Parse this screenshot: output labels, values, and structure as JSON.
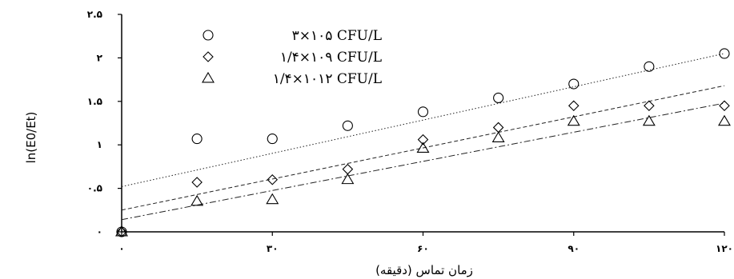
{
  "chart_data": {
    "type": "scatter",
    "xlabel": "زمان تماس (دقیقه)",
    "ylabel": "ln(E0/Et)",
    "xlim": [
      0,
      120
    ],
    "ylim": [
      0,
      2.5
    ],
    "x_ticks": [
      {
        "value": 0,
        "label": "۰"
      },
      {
        "value": 30,
        "label": "۳۰"
      },
      {
        "value": 60,
        "label": "۶۰"
      },
      {
        "value": 90,
        "label": "۹۰"
      },
      {
        "value": 120,
        "label": "۱۲۰"
      }
    ],
    "y_ticks": [
      {
        "value": 0,
        "label": "۰"
      },
      {
        "value": 0.5,
        "label": "۰.۵"
      },
      {
        "value": 1,
        "label": "۱"
      },
      {
        "value": 1.5,
        "label": "۱.۵"
      },
      {
        "value": 2,
        "label": "۲"
      },
      {
        "value": 2.5,
        "label": "۲.۵"
      }
    ],
    "grid": false,
    "legend_position": "top-left",
    "series": [
      {
        "name": "۳×۱۰۵ CFU/L",
        "marker": "circle",
        "line_style": "dotted",
        "x": [
          0,
          15,
          30,
          45,
          60,
          75,
          90,
          105,
          120
        ],
        "y": [
          0,
          1.07,
          1.07,
          1.22,
          1.38,
          1.54,
          1.7,
          1.9,
          2.05
        ],
        "trendline": [
          0.52,
          2.05
        ]
      },
      {
        "name": "۱/۴×۱۰۹ CFU/L",
        "marker": "diamond",
        "line_style": "dashed",
        "x": [
          0,
          15,
          30,
          45,
          60,
          75,
          90,
          105,
          120
        ],
        "y": [
          0,
          0.57,
          0.6,
          0.72,
          1.06,
          1.2,
          1.45,
          1.45,
          1.45
        ],
        "trendline": [
          0.25,
          1.68
        ]
      },
      {
        "name": "۱/۴×۱۰۱۲ CFU/L",
        "marker": "triangle",
        "line_style": "dashdot",
        "x": [
          0,
          15,
          30,
          45,
          60,
          75,
          90,
          105,
          120
        ],
        "y": [
          0,
          0.35,
          0.37,
          0.6,
          0.96,
          1.08,
          1.27,
          1.27,
          1.27
        ],
        "trendline": [
          0.14,
          1.48
        ]
      }
    ]
  }
}
